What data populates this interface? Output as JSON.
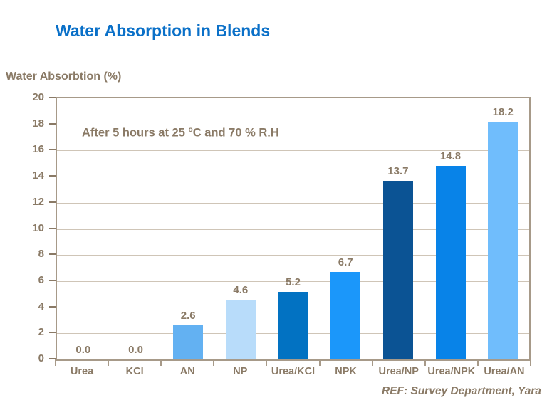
{
  "title": "Water Absorption in Blends",
  "y_axis_title": "Water Absorbtion (%)",
  "annotation": {
    "text_before_sup": "After 5 hours at 25 ",
    "sup": "o",
    "text_after_sup": "C and 70 % R.H"
  },
  "ref_note": "REF: Survey Department, Yara",
  "colors": {
    "title_blue": "#0A70C8",
    "text_brown": "#8A7A66",
    "frame": "#A79A89",
    "gridline": "#CFC5B7",
    "background": "#FFFFFF"
  },
  "chart_data": {
    "type": "bar",
    "title": "Water Absorption in Blends",
    "xlabel": "",
    "ylabel": "Water Absorbtion (%)",
    "ylim": [
      0,
      20
    ],
    "ytick_step": 2,
    "grid": true,
    "legend": "none",
    "annotation": "After 5 hours at 25 oC and 70 % R.H",
    "categories": [
      "Urea",
      "KCl",
      "AN",
      "NP",
      "Urea/KCl",
      "NPK",
      "Urea/NP",
      "Urea/NPK",
      "Urea/AN"
    ],
    "values": [
      0.0,
      0.0,
      2.6,
      4.6,
      5.2,
      6.7,
      13.7,
      14.8,
      18.2
    ],
    "value_labels": [
      "0.0",
      "0.0",
      "2.6",
      "4.6",
      "5.2",
      "6.7",
      "13.7",
      "14.8",
      "18.2"
    ],
    "bar_colors": [
      null,
      null,
      "#63B1F2",
      "#B8DCFA",
      "#0272C2",
      "#1B97FA",
      "#0B5394",
      "#0883E8",
      "#70BDFC"
    ]
  }
}
